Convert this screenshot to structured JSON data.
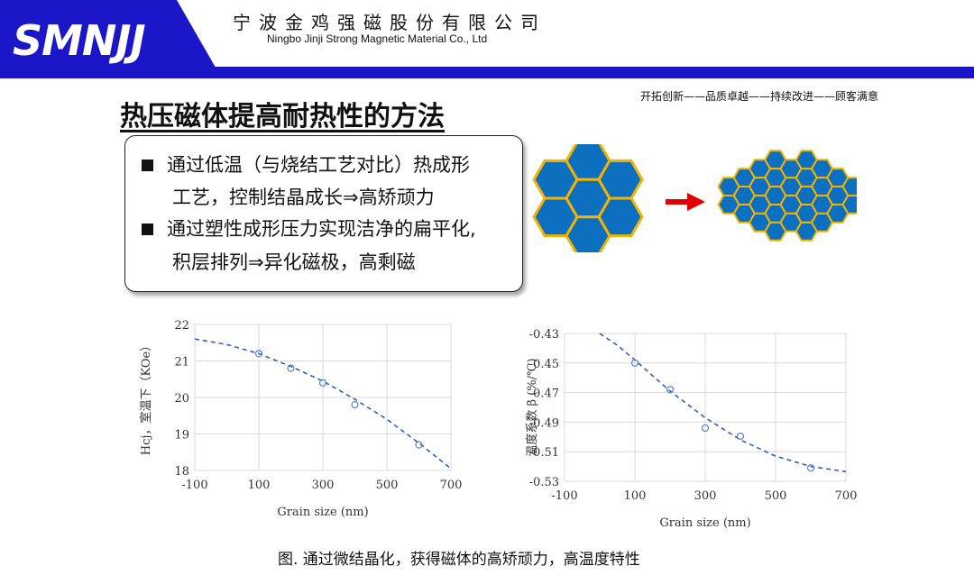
{
  "header": {
    "logo": "SMNJJ",
    "company_cn": "宁波金鸡强磁股份有限公司",
    "company_en": "Ningbo Jinji Strong Magnetic Material Co., Ltd",
    "colors": {
      "brand_blue": "#1b17c8",
      "hex_fill": "#0d6fc0",
      "hex_border": "#f2b400",
      "arrow": "#e00000"
    }
  },
  "slogan": "开拓创新——品质卓越——持续改进——顾客满意",
  "title": "热压磁体提高耐热性的方法",
  "bullets": {
    "b1_line1": "通过低温（与烧结工艺对比）热成形",
    "b1_line2": "工艺，控制结晶成长⇒高矫顽力",
    "b2_line1": "通过塑性成形压力实现洁净的扁平化,",
    "b2_line2": "积层排列⇒异化磁极，高剩磁"
  },
  "caption": "图. 通过微结晶化，获得磁体的高矫顽力，高温度特性",
  "chart_data": [
    {
      "type": "scatter",
      "xlabel": "Grain size (nm)",
      "ylabel": "Hcj，室温下（KOe）",
      "xlim": [
        -100,
        700
      ],
      "ylim": [
        18,
        22
      ],
      "xticks": [
        "-100",
        "100",
        "300",
        "500",
        "700"
      ],
      "yticks": [
        "18",
        "19",
        "20",
        "21",
        "22"
      ],
      "points": {
        "x": [
          100,
          200,
          300,
          400,
          600
        ],
        "y": [
          21.2,
          20.8,
          20.4,
          19.8,
          18.7
        ]
      },
      "trend": {
        "x": [
          -100,
          0,
          100,
          200,
          300,
          400,
          500,
          600,
          700
        ],
        "y": [
          21.6,
          21.45,
          21.2,
          20.85,
          20.45,
          19.95,
          19.4,
          18.75,
          18.05
        ]
      },
      "grid": true
    },
    {
      "type": "scatter",
      "xlabel": "Grain size (nm)",
      "ylabel": "温度系数 β (%/℃)",
      "xlim": [
        -100,
        700
      ],
      "ylim": [
        -0.53,
        -0.43
      ],
      "xticks": [
        "-100",
        "100",
        "300",
        "500",
        "700"
      ],
      "yticks": [
        "-0.43",
        "-0.45",
        "-0.47",
        "-0.49",
        "-0.51",
        "-0.53"
      ],
      "points": {
        "x": [
          100,
          200,
          300,
          400,
          600
        ],
        "y": [
          -0.45,
          -0.468,
          -0.494,
          -0.4995,
          -0.521
        ]
      },
      "trend": {
        "x": [
          0,
          50,
          100,
          200,
          300,
          400,
          500,
          600,
          700
        ],
        "y": [
          -0.43,
          -0.438,
          -0.448,
          -0.469,
          -0.487,
          -0.502,
          -0.513,
          -0.52,
          -0.5235
        ]
      },
      "grid": true
    }
  ]
}
